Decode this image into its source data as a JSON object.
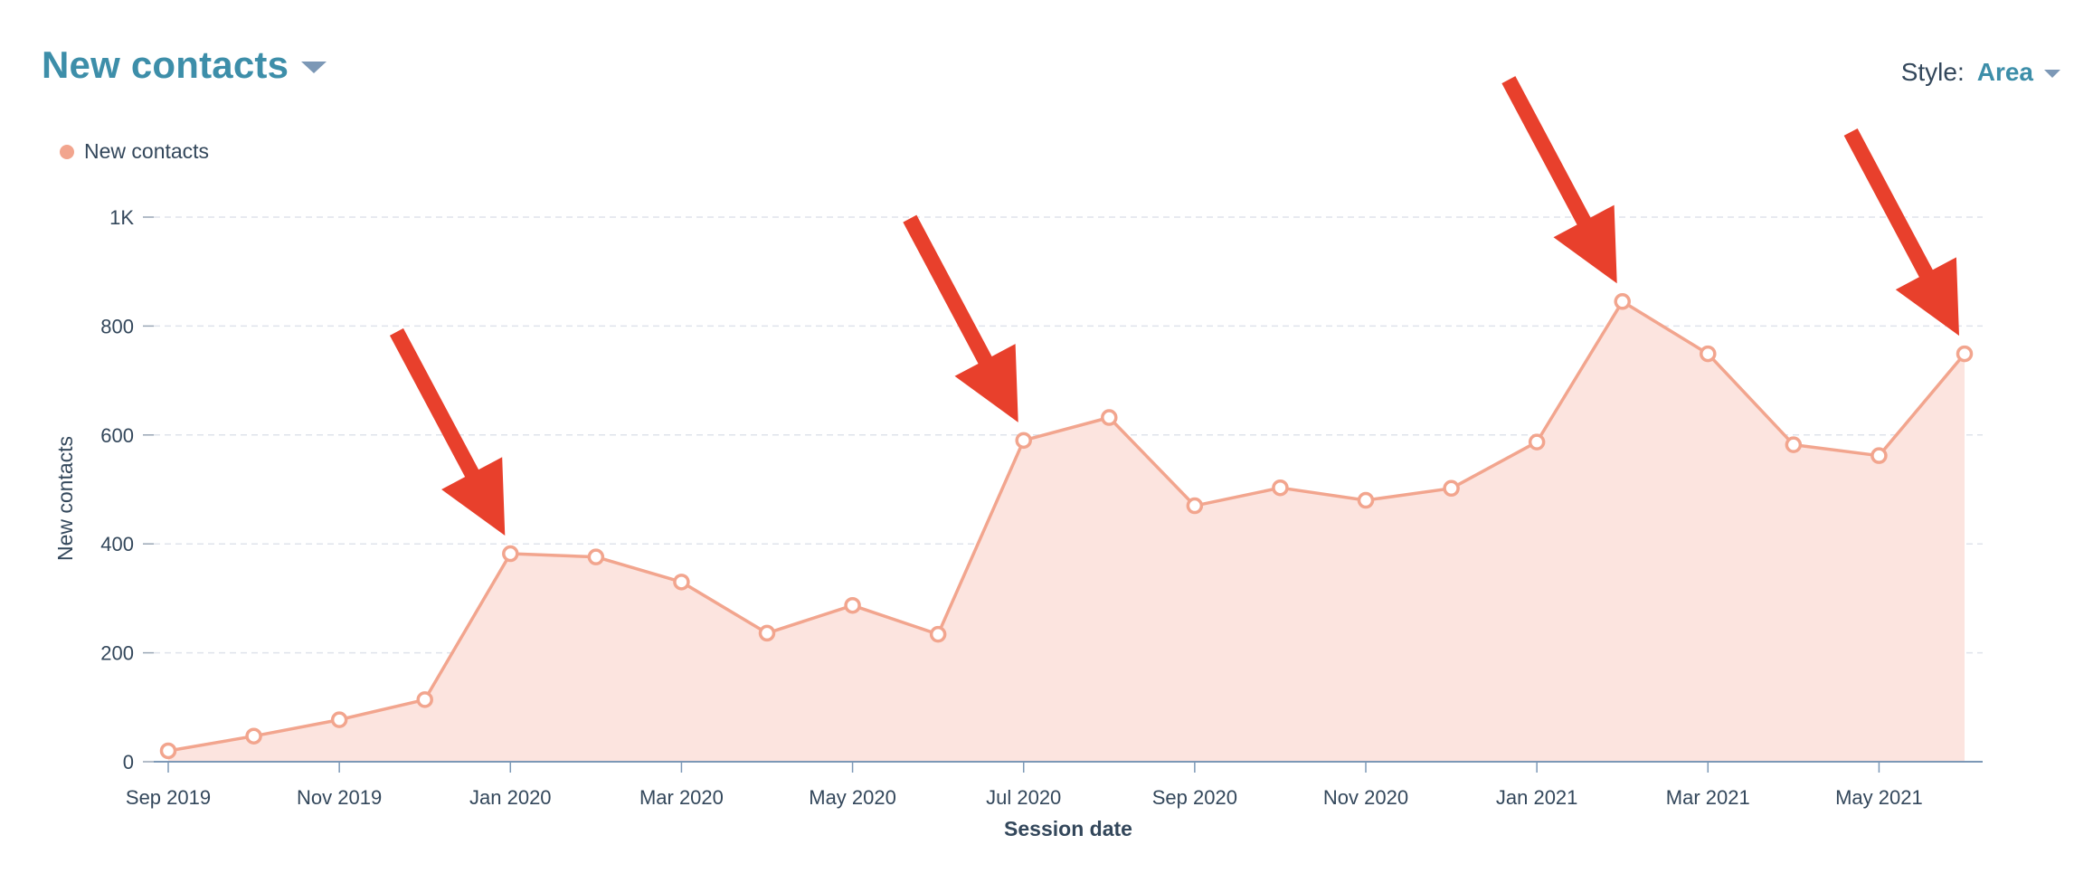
{
  "header": {
    "title": "New contacts",
    "style_label": "Style:",
    "style_value": "Area"
  },
  "colors": {
    "title": "#3d8ea9",
    "series_line": "#f2a58e",
    "series_fill": "#fce4df",
    "arrow": "#e8402c",
    "axis_text": "#33475b",
    "grid": "#dfe3eb"
  },
  "chart_data": {
    "type": "area",
    "x": [
      "Sep 2019",
      "Oct 2019",
      "Nov 2019",
      "Dec 2019",
      "Jan 2020",
      "Feb 2020",
      "Mar 2020",
      "Apr 2020",
      "May 2020",
      "Jun 2020",
      "Jul 2020",
      "Aug 2020",
      "Sep 2020",
      "Oct 2020",
      "Nov 2020",
      "Dec 2020",
      "Jan 2021",
      "Feb 2021",
      "Mar 2021",
      "Apr 2021",
      "May 2021",
      "Jun 2021"
    ],
    "x_tick_labels": [
      "Sep 2019",
      "Nov 2019",
      "Jan 2020",
      "Mar 2020",
      "May 2020",
      "Jul 2020",
      "Sep 2020",
      "Nov 2020",
      "Jan 2021",
      "Mar 2021",
      "May 2021"
    ],
    "series": [
      {
        "name": "New contacts",
        "values": [
          20,
          47,
          77,
          114,
          382,
          376,
          330,
          236,
          287,
          234,
          590,
          632,
          470,
          503,
          480,
          502,
          587,
          845,
          749,
          582,
          562,
          749
        ]
      }
    ],
    "xlabel": "Session date",
    "ylabel": "New contacts",
    "ylim": [
      0,
      1000
    ],
    "y_ticks": [
      0,
      200,
      400,
      600,
      800,
      1000
    ],
    "y_tick_labels": [
      "0",
      "200",
      "400",
      "600",
      "800",
      "1K"
    ],
    "grid": true,
    "legend": "top-left",
    "annotations": {
      "arrows_at": [
        "Jan 2020",
        "Jul 2020",
        "Feb 2021",
        "Jun 2021"
      ]
    }
  }
}
